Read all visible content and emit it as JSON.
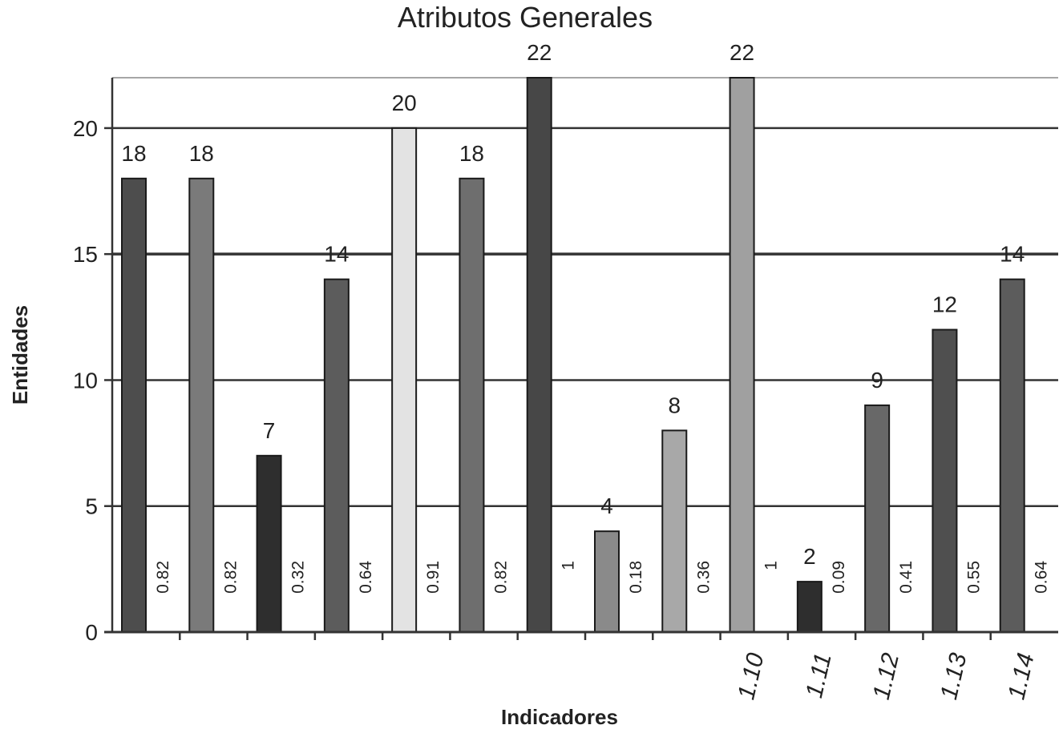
{
  "chart_data": {
    "type": "bar",
    "title": "Atributos Generales",
    "xlabel": "Indicadores",
    "ylabel": "Entidades",
    "ylim": [
      0,
      22
    ],
    "yticks": [
      "0",
      "5",
      "10",
      "15",
      "20"
    ],
    "grid": true,
    "categories": [
      "",
      "",
      "",
      "",
      "",
      "",
      "",
      "",
      "",
      "1.10",
      "1.11",
      "1.12",
      "1.13",
      "1.14"
    ],
    "values": [
      18,
      18,
      7,
      14,
      20,
      18,
      22,
      4,
      8,
      22,
      2,
      9,
      12,
      14
    ],
    "value_labels": [
      "18",
      "18",
      "7",
      "14",
      "20",
      "18",
      "22",
      "4",
      "8",
      "22",
      "2",
      "9",
      "12",
      "14"
    ],
    "ratio_labels": [
      "0.82",
      "0.82",
      "0.32",
      "0.64",
      "0.91",
      "0.82",
      "1",
      "0.18",
      "0.36",
      "1",
      "0.09",
      "0.41",
      "0.55",
      "0.64"
    ],
    "bar_colors": [
      "#4d4d4d",
      "#7a7a7a",
      "#2e2e2e",
      "#5c5c5c",
      "#e3e3e3",
      "#6e6e6e",
      "#474747",
      "#8a8a8a",
      "#a8a8a8",
      "#a0a0a0",
      "#2e2e2e",
      "#686868",
      "#4f4f4f",
      "#5c5c5c"
    ]
  }
}
